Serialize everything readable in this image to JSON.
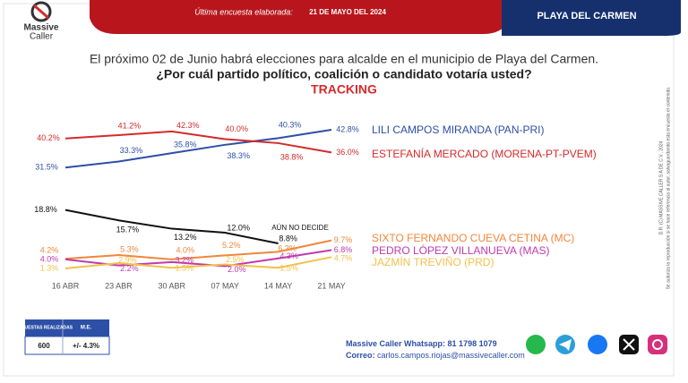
{
  "header": {
    "logo_line1": "Massive",
    "logo_line2": "Caller",
    "survey_label": "Última encuesta elaborada:",
    "survey_date": "21 DE MAYO DEL 2024",
    "location": "PLAYA DEL CARMEN"
  },
  "question": {
    "line1": "El próximo 02 de Junio habrá elecciones para alcalde en el municipio de  Playa del Carmen.",
    "line2": "¿Por cuál partido político, coalición o candidato votaría usted?",
    "line3": "TRACKING"
  },
  "chart_data": {
    "type": "line",
    "categories": [
      "16 ABR",
      "23 ABR",
      "30 ABR",
      "07 MAY",
      "14 MAY",
      "21 MAY"
    ],
    "series": [
      {
        "name": "LILI CAMPOS MIRANDA (PAN-PRI)",
        "color": "#2d4fa6",
        "values": [
          31.5,
          33.3,
          35.8,
          38.3,
          40.3,
          42.8
        ],
        "value_labels": [
          "31.5%",
          "33.3%",
          "35.8%",
          "38.3%",
          "40.3%",
          "42.8%"
        ]
      },
      {
        "name": "ESTEFANÍA MERCADO (MORENA-PT-PVEM)",
        "color": "#d42a2a",
        "values": [
          40.2,
          41.2,
          42.3,
          40.0,
          38.8,
          36.0
        ],
        "value_labels": [
          "40.2%",
          "41.2%",
          "42.3%",
          "40.0%",
          "38.8%",
          "36.0%"
        ]
      },
      {
        "name": "AÚN NO DECIDE",
        "color": "#111111",
        "values": [
          18.8,
          15.7,
          13.2,
          12.0,
          8.8,
          null
        ],
        "value_labels": [
          "18.8%",
          "15.7%",
          "13.2%",
          "12.0%",
          "8.8%",
          null
        ]
      },
      {
        "name": "SIXTO FERNANDO CUEVA CETINA (MC)",
        "color": "#f0873a",
        "values": [
          4.2,
          5.3,
          4.0,
          5.2,
          6.3,
          9.7
        ],
        "value_labels": [
          "4.2%",
          "5.3%",
          "4.0%",
          "5.2%",
          "6.3%",
          "9.7%"
        ]
      },
      {
        "name": "PEDRO LÓPEZ VILLANUEVA (MAS)",
        "color": "#c03aae",
        "values": [
          4.0,
          2.2,
          3.2,
          2.0,
          4.3,
          6.8
        ],
        "value_labels": [
          "4.0%",
          "2.2%",
          "3.2%",
          "2.0%",
          "4.3%",
          "6.8%"
        ]
      },
      {
        "name": "JAZMÍN TREVIÑO (PRD)",
        "color": "#f2c04a",
        "values": [
          1.3,
          2.9,
          1.5,
          2.5,
          1.5,
          4.7
        ],
        "value_labels": [
          "1.3%",
          "2.9%",
          "1.5%",
          "2.5%",
          "1.5%",
          "4.7%"
        ]
      }
    ]
  },
  "table": {
    "headers": [
      "ENCUESTAS REALIZADAS",
      "M.E."
    ],
    "row": [
      "600",
      "+/- 4.3%"
    ]
  },
  "footer": {
    "whatsapp_label": "Massive Caller Whatsapp:",
    "whatsapp_number": " 81 1798 1079",
    "email_label": "Correo:",
    "email": " carlos.campos.riojas@massivecaller.com"
  },
  "side_note": {
    "line1": "D.R. (C) MASSIVE CALLER S.A DE C.V., 2024",
    "line2": "Se autoriza la reproducción si se hace referencia al autor, salvaguardando esta encuesta el contenido."
  }
}
